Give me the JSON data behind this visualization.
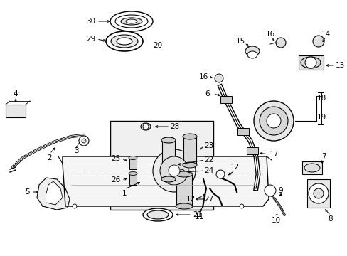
{
  "bg_color": "#ffffff",
  "line_color": "#000000",
  "text_color": "#000000",
  "fig_width": 4.89,
  "fig_height": 3.6,
  "dpi": 100,
  "font_size": 7.5
}
